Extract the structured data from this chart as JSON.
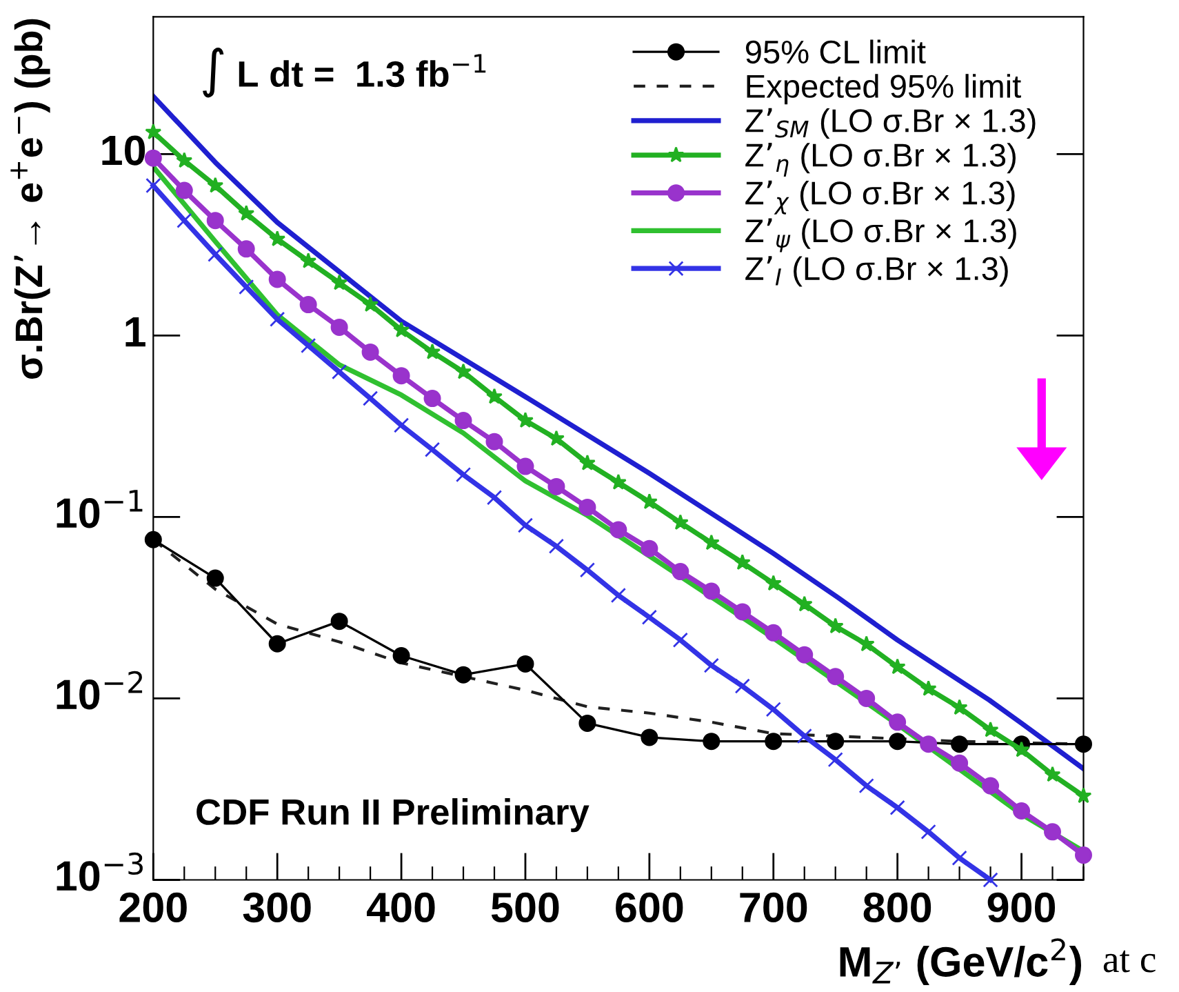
{
  "chart_data": {
    "type": "line",
    "xlabel": "M$_{Z’}$ (GeV/c$^{2}$)",
    "ylabel": "σ.Br(Z’→ e$^{+}$e$^{−}$) (pb)",
    "annotations": [
      "∫ L dt =  1.3 fb$^{−1}$",
      "CDF Run II Preliminary",
      "at c"
    ],
    "log": "y",
    "legend": "top right",
    "grid": false,
    "xlim": [
      200,
      950
    ],
    "xticks": [
      200,
      300,
      400,
      500,
      600,
      700,
      800,
      900
    ],
    "ylim": [
      0.001,
      57
    ],
    "yticks": [
      {
        "value": 0.001,
        "label": "10$^{−3}$"
      },
      {
        "value": 0.01,
        "label": "10$^{−2}$"
      },
      {
        "value": 0.1,
        "label": "10$^{−1}$"
      },
      {
        "value": 1,
        "label": "1"
      },
      {
        "value": 10,
        "label": "10"
      }
    ],
    "series": [
      {
        "name": "95% CL limit",
        "color": "#000000",
        "marker": "circle",
        "line_style": "solid",
        "x": [
          200,
          250,
          300,
          350,
          400,
          450,
          500,
          550,
          600,
          650,
          700,
          750,
          800,
          850,
          900,
          950
        ],
        "values": [
          0.075,
          0.046,
          0.02,
          0.0266,
          0.0172,
          0.0135,
          0.0155,
          0.0073,
          0.0061,
          0.0058,
          0.0058,
          0.0058,
          0.0058,
          0.0056,
          0.0056,
          0.0056
        ]
      },
      {
        "name": "Expected 95% limit",
        "color": "#202020",
        "marker": "none",
        "line_style": "dashed",
        "x": [
          200,
          250,
          300,
          350,
          400,
          450,
          500,
          550,
          600,
          650,
          700,
          750,
          800,
          850,
          900,
          950
        ],
        "values": [
          0.075,
          0.04,
          0.0257,
          0.0205,
          0.0157,
          0.0132,
          0.0111,
          0.009,
          0.0083,
          0.0074,
          0.0064,
          0.0062,
          0.006,
          0.0058,
          0.0057,
          0.0056
        ]
      },
      {
        "name": "Z’$_{SM}$ (LO σ.Br × 1.3)",
        "color": "#1f1fd0",
        "marker": "none",
        "line_style": "solid",
        "x": [
          200,
          250,
          300,
          400,
          500,
          600,
          700,
          752,
          800,
          874,
          900,
          950
        ],
        "values": [
          20.8,
          9.0,
          4.2,
          1.2,
          0.46,
          0.174,
          0.063,
          0.036,
          0.021,
          0.0098,
          0.0073,
          0.0041
        ]
      },
      {
        "name": "Z’$_{η}$ (LO σ.Br × 1.3)",
        "color": "#22b022",
        "marker": "star",
        "line_style": "solid",
        "x": [
          200,
          225,
          250,
          275,
          300,
          325,
          350,
          375,
          400,
          425,
          450,
          475,
          500,
          525,
          550,
          575,
          600,
          625,
          650,
          675,
          700,
          725,
          750,
          775,
          800,
          825,
          850,
          875,
          900,
          925,
          950
        ],
        "values": [
          13.2,
          9.2,
          6.7,
          4.7,
          3.4,
          2.57,
          1.95,
          1.48,
          1.07,
          0.81,
          0.63,
          0.46,
          0.34,
          0.27,
          0.198,
          0.155,
          0.121,
          0.093,
          0.072,
          0.056,
          0.043,
          0.033,
          0.025,
          0.0199,
          0.0149,
          0.0113,
          0.0089,
          0.0067,
          0.0052,
          0.0038,
          0.0029
        ]
      },
      {
        "name": "Z’$_{χ}$ (LO σ.Br × 1.3)",
        "color": "#9933cc",
        "marker": "circle",
        "line_style": "solid",
        "x": [
          200,
          225,
          250,
          275,
          300,
          325,
          350,
          375,
          400,
          425,
          450,
          475,
          500,
          525,
          550,
          575,
          600,
          625,
          650,
          675,
          700,
          725,
          750,
          775,
          800,
          825,
          850,
          875,
          900,
          925,
          950
        ],
        "values": [
          9.5,
          6.3,
          4.3,
          3.0,
          2.04,
          1.48,
          1.11,
          0.81,
          0.6,
          0.45,
          0.34,
          0.26,
          0.19,
          0.147,
          0.113,
          0.085,
          0.067,
          0.05,
          0.039,
          0.03,
          0.023,
          0.0174,
          0.0132,
          0.01,
          0.0074,
          0.0056,
          0.0044,
          0.0033,
          0.0024,
          0.00184,
          0.00137
        ]
      },
      {
        "name": "Z’$_{ψ}$ (LO σ.Br × 1.3)",
        "color": "#30c030",
        "marker": "none",
        "line_style": "solid",
        "x": [
          200,
          250,
          300,
          350,
          400,
          450,
          500,
          550,
          600,
          700,
          800,
          900,
          950
        ],
        "values": [
          8.5,
          3.3,
          1.3,
          0.69,
          0.47,
          0.29,
          0.158,
          0.102,
          0.061,
          0.0215,
          0.0072,
          0.0023,
          0.00144
        ]
      },
      {
        "name": "Z’$_{I}$ (LO σ.Br × 1.3)",
        "color": "#3333e6",
        "marker": "cross",
        "line_style": "solid",
        "x": [
          200,
          225,
          250,
          275,
          300,
          325,
          350,
          375,
          400,
          425,
          450,
          475,
          500,
          525,
          550,
          575,
          600,
          625,
          650,
          675,
          700,
          725,
          750,
          775,
          800,
          825,
          850,
          875
        ],
        "values": [
          6.7,
          4.3,
          2.8,
          1.85,
          1.23,
          0.88,
          0.63,
          0.45,
          0.32,
          0.235,
          0.171,
          0.128,
          0.09,
          0.069,
          0.051,
          0.037,
          0.028,
          0.021,
          0.0152,
          0.0117,
          0.0087,
          0.0062,
          0.0046,
          0.0033,
          0.0025,
          0.00184,
          0.00132,
          0.001
        ]
      }
    ]
  }
}
